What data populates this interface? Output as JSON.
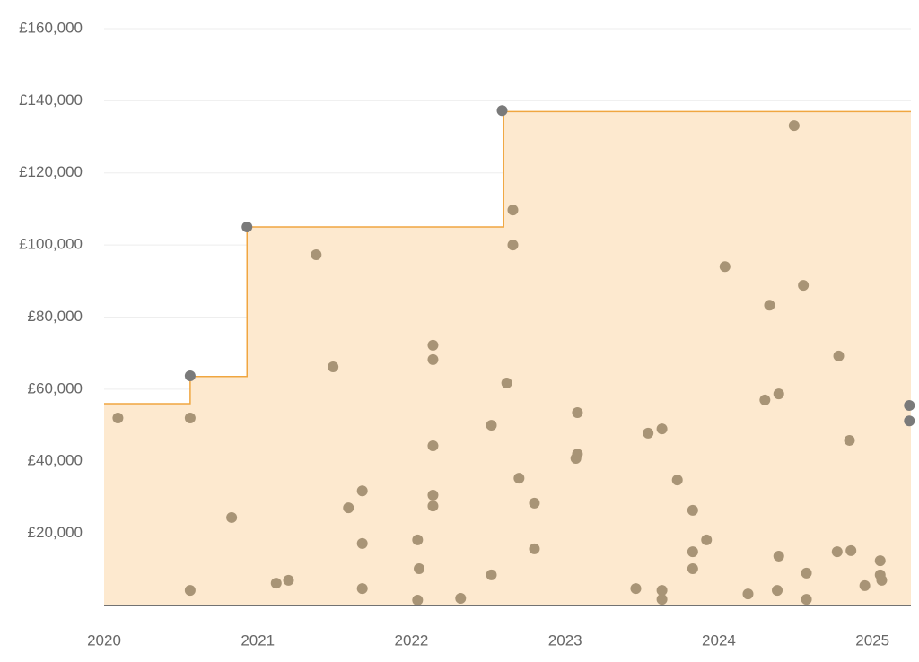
{
  "chart_data": {
    "type": "scatter",
    "xlim": [
      2020,
      2025.25
    ],
    "ylim": [
      0,
      160000
    ],
    "xticks": [
      2020,
      2021,
      2022,
      2023,
      2024,
      2025
    ],
    "yticks": [
      {
        "value": 20000,
        "label": "£20,000"
      },
      {
        "value": 40000,
        "label": "£40,000"
      },
      {
        "value": 60000,
        "label": "£60,000"
      },
      {
        "value": 80000,
        "label": "£80,000"
      },
      {
        "value": 100000,
        "label": "£100,000"
      },
      {
        "value": 120000,
        "label": "£120,000"
      },
      {
        "value": 140000,
        "label": "£140,000"
      },
      {
        "value": 160000,
        "label": "£160,000"
      }
    ],
    "grid": true,
    "series": [
      {
        "type": "step",
        "color": "#f0a640",
        "fill": "#fde9cf",
        "x": [
          2020,
          2020.56,
          2020.93,
          2022.6,
          2025.25
        ],
        "values": [
          56000,
          63500,
          105000,
          137000,
          137000
        ]
      },
      {
        "type": "scatter",
        "color": "#a89476",
        "x": [
          2020.09,
          2020.56,
          2020.56,
          2020.83,
          2021.12,
          2021.2,
          2021.38,
          2021.49,
          2021.59,
          2021.68,
          2021.68,
          2021.68,
          2022.04,
          2022.05,
          2022.04,
          2022.14,
          2022.14,
          2022.14,
          2022.14,
          2022.14,
          2022.32,
          2022.52,
          2022.52,
          2022.66,
          2022.66,
          2022.62,
          2022.7,
          2022.8,
          2022.8,
          2023.08,
          2023.08,
          2023.07,
          2023.46,
          2023.54,
          2023.63,
          2023.63,
          2023.63,
          2023.73,
          2023.83,
          2023.83,
          2023.83,
          2023.92,
          2024.04,
          2024.19,
          2024.3,
          2024.33,
          2024.39,
          2024.39,
          2024.38,
          2024.49,
          2024.55,
          2024.57,
          2024.57,
          2024.77,
          2024.78,
          2024.85,
          2024.86,
          2024.95,
          2025.05,
          2025.05,
          2025.06
        ],
        "values": [
          52000,
          52000,
          4200,
          24400,
          6200,
          7000,
          97300,
          66200,
          27100,
          31800,
          17200,
          4700,
          18200,
          10200,
          1500,
          72200,
          68200,
          44300,
          30600,
          27600,
          2000,
          50000,
          8500,
          109700,
          100000,
          61700,
          35300,
          28400,
          15700,
          53500,
          42000,
          40800,
          4700,
          47800,
          49000,
          4200,
          1700,
          34800,
          26400,
          14900,
          10200,
          18200,
          94000,
          3200,
          57000,
          83300,
          58700,
          13700,
          4200,
          133100,
          88800,
          9000,
          1700,
          14900,
          69200,
          45800,
          15200,
          5500,
          12400,
          8500,
          7000
        ]
      },
      {
        "type": "scatter",
        "color": "#7a7a7a",
        "x": [
          2020.56,
          2020.93,
          2022.59,
          2025.24,
          2025.24
        ],
        "values": [
          63700,
          105000,
          137300,
          55500,
          51200
        ]
      }
    ]
  }
}
